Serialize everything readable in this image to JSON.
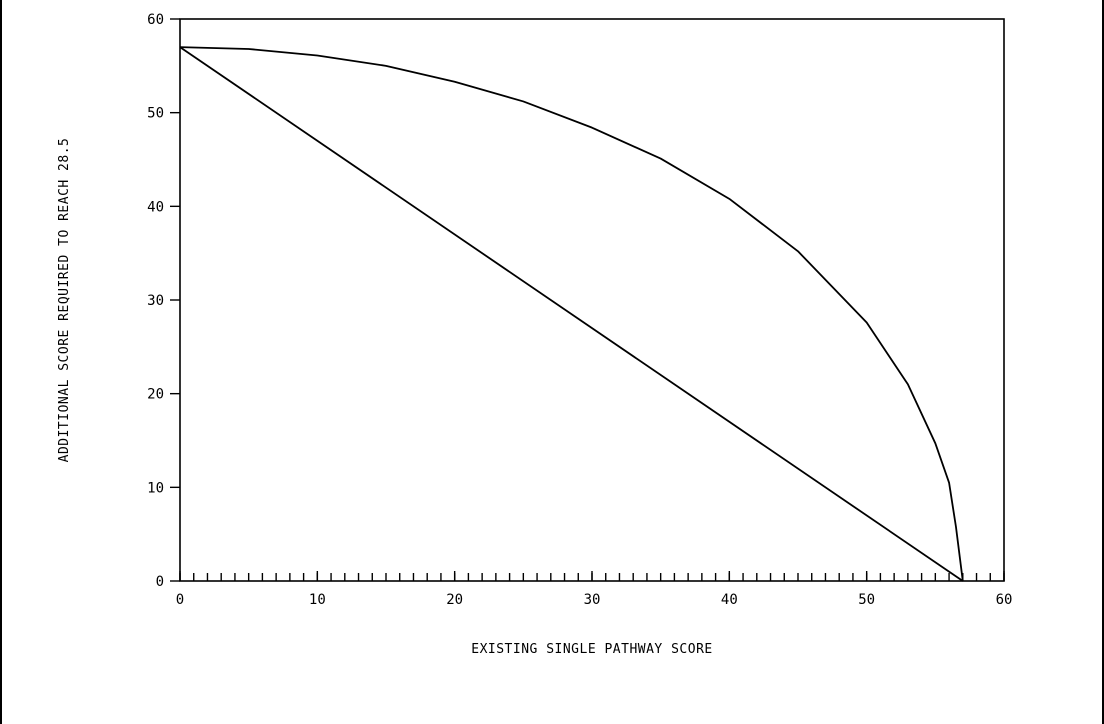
{
  "chart_data": {
    "type": "line",
    "title": "",
    "xlabel": "EXISTING SINGLE PATHWAY SCORE",
    "ylabel": "ADDITIONAL SCORE REQUIRED TO REACH 28.5",
    "xlim": [
      0,
      60
    ],
    "ylim": [
      0,
      60
    ],
    "x_ticks": [
      0,
      10,
      20,
      30,
      40,
      50,
      60
    ],
    "y_ticks": [
      0,
      10,
      20,
      30,
      40,
      50,
      60
    ],
    "x_minor_step": 1,
    "grid": false,
    "legend": "none",
    "series": [
      {
        "x": [
          0,
          57
        ],
        "y": [
          57,
          0
        ]
      },
      {
        "x": [
          0,
          5,
          10,
          15,
          20,
          25,
          30,
          35,
          40,
          45,
          50,
          53,
          55,
          56,
          56.5,
          57
        ],
        "y": [
          57,
          56.8,
          56.1,
          55.0,
          53.3,
          51.2,
          48.4,
          45.1,
          40.8,
          35.2,
          27.6,
          21.0,
          14.7,
          10.5,
          5.8,
          0
        ]
      }
    ]
  }
}
